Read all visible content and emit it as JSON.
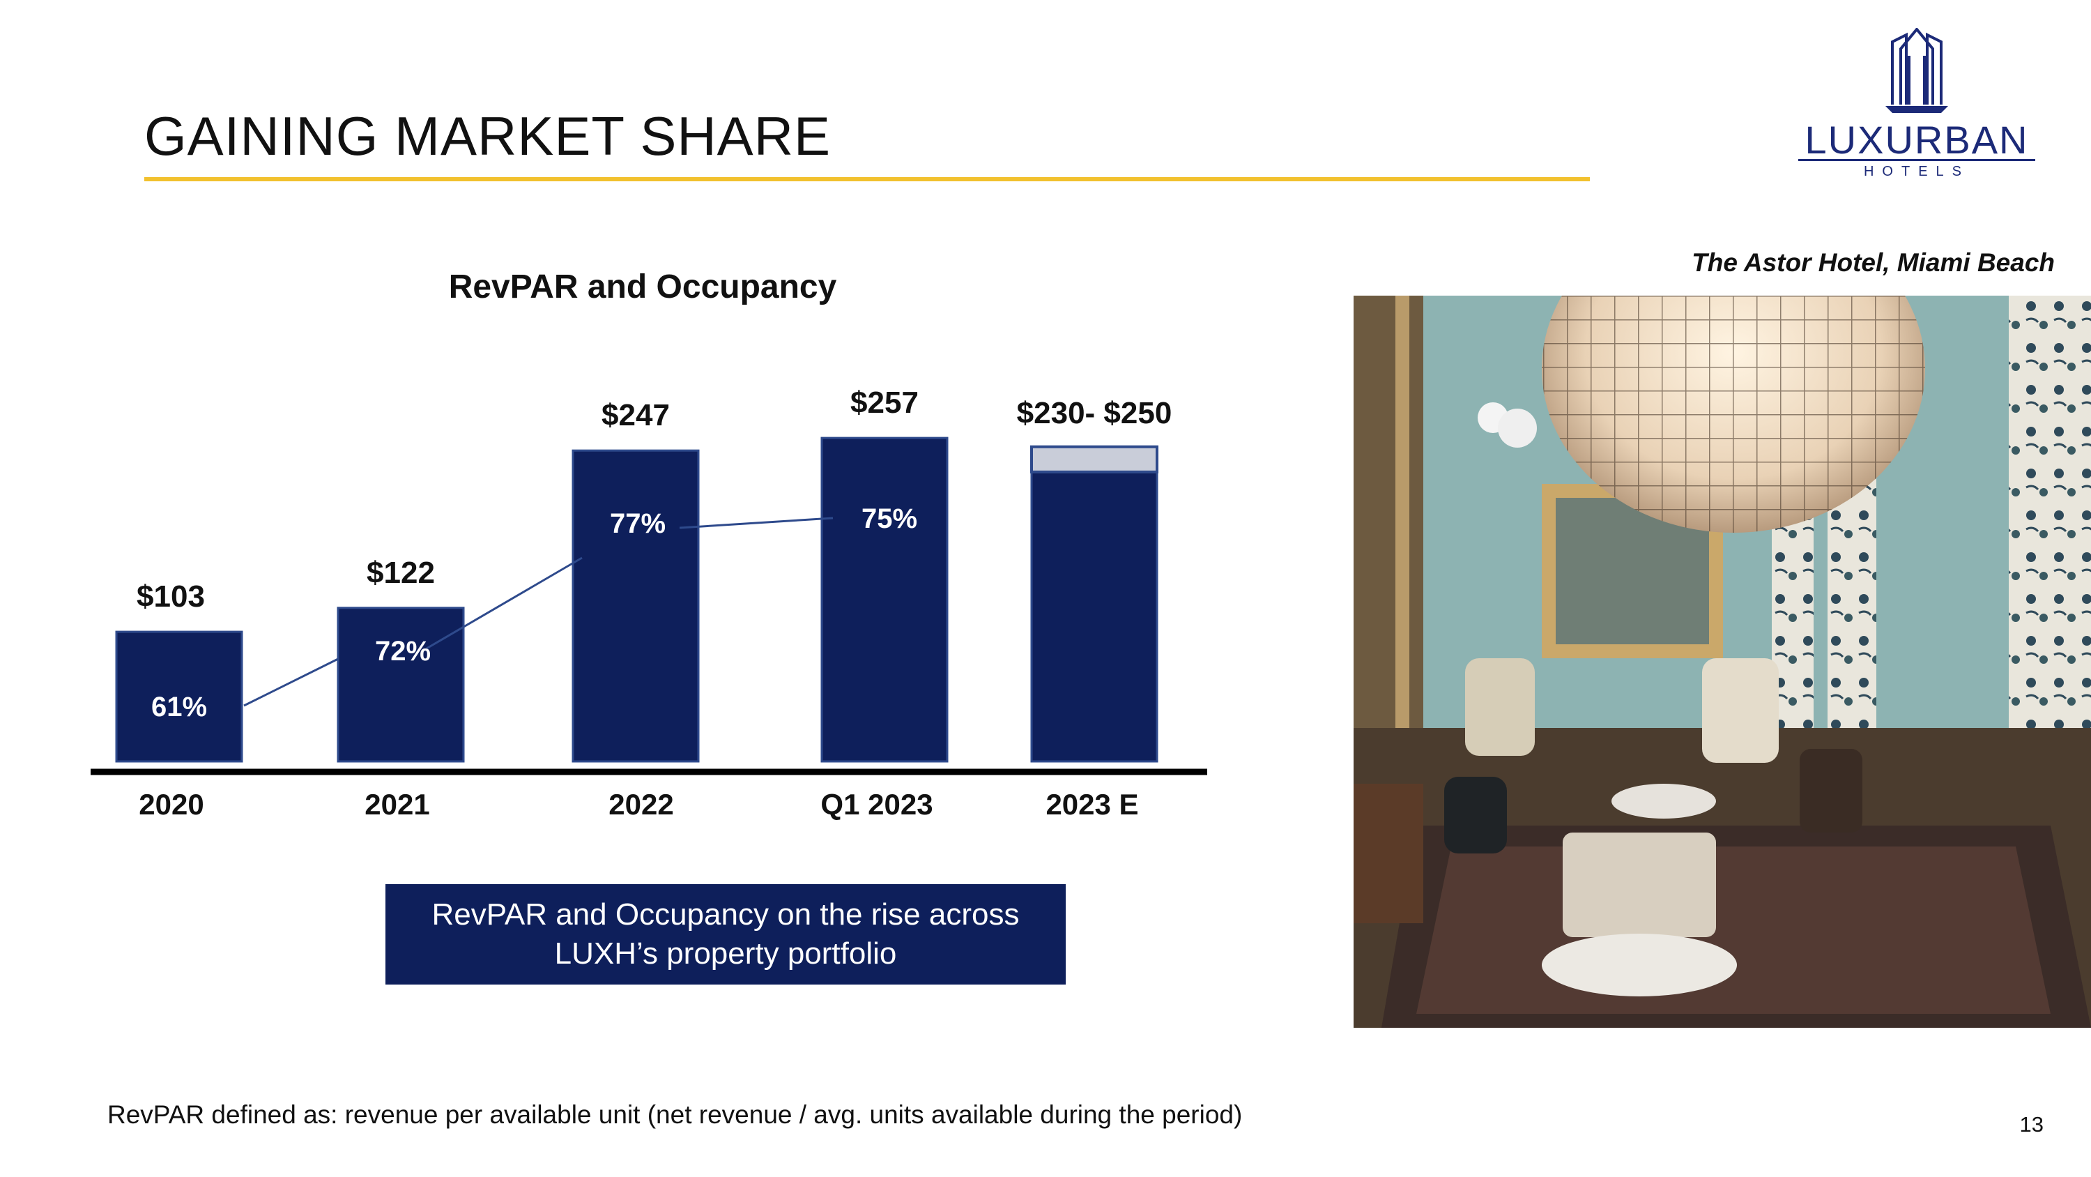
{
  "slide": {
    "title": "GAINING MARKET SHARE",
    "page_number": "13",
    "footnote": "RevPAR defined as: revenue per available unit (net revenue / avg. units available during the period)",
    "callout_line1": "RevPAR and Occupancy on the rise across",
    "callout_line2": "LUXH’s property portfolio"
  },
  "logo": {
    "name": "LUXURBAN",
    "sub": "HOTELS"
  },
  "photo": {
    "caption": "The Astor Hotel, Miami Beach"
  },
  "colors": {
    "bar": "#0e1f5b",
    "accent_rule": "#f2c12e",
    "estimate_top": "#c9cdd9"
  },
  "chart_data": {
    "type": "bar",
    "title": "RevPAR and Occupancy",
    "categories": [
      "2020",
      "2021",
      "2022",
      "Q1 2023",
      "2023 E"
    ],
    "series": [
      {
        "name": "RevPAR",
        "values": [
          103,
          122,
          247,
          257,
          230
        ],
        "estimate_high": [
          null,
          null,
          null,
          null,
          250
        ]
      },
      {
        "name": "Occupancy",
        "type": "line",
        "values": [
          61,
          72,
          77,
          75,
          null
        ]
      }
    ],
    "bar_labels": [
      "$103",
      "$122",
      "$247",
      "$257",
      "$230- $250"
    ],
    "occupancy_labels": [
      "61%",
      "72%",
      "77%",
      "75%",
      ""
    ],
    "ylim": [
      0,
      260
    ],
    "xlabel": "",
    "ylabel": ""
  }
}
